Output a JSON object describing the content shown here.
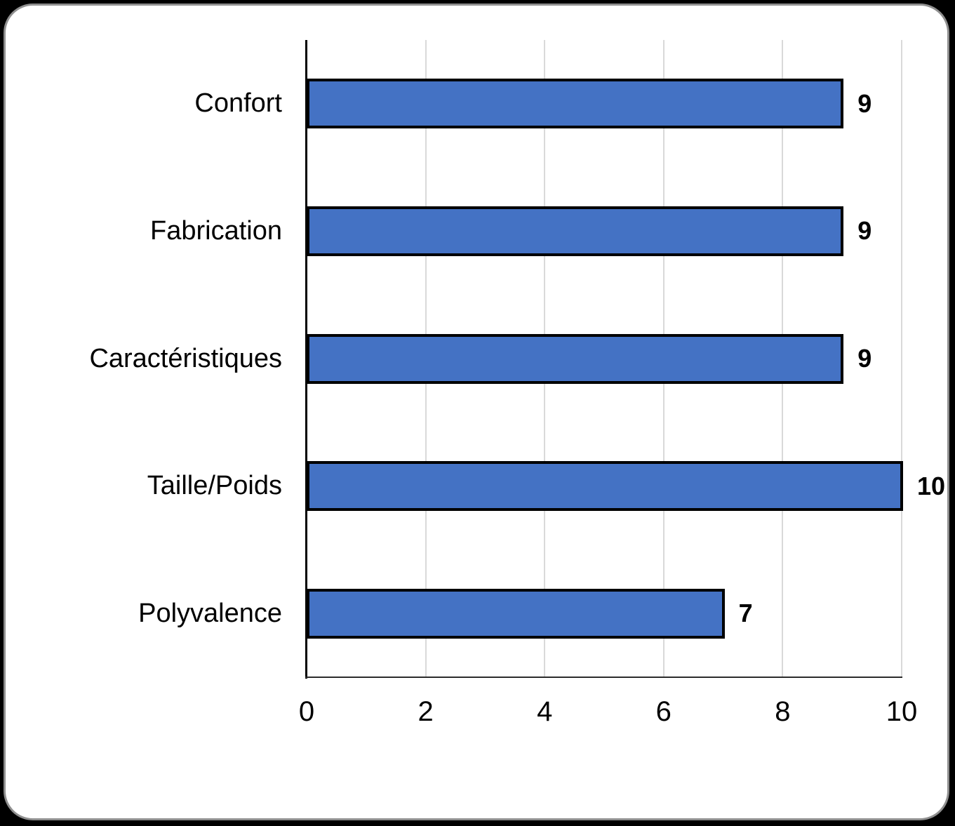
{
  "chart_data": {
    "type": "bar",
    "orientation": "horizontal",
    "title": "",
    "xlabel": "",
    "ylabel": "",
    "categories": [
      "Confort",
      "Fabrication",
      "Caractéristiques",
      "Taille/Poids",
      "Polyvalence"
    ],
    "values": [
      9,
      9,
      9,
      10,
      7
    ],
    "data_labels": [
      "9",
      "9",
      "9",
      "10",
      "7"
    ],
    "xlim": [
      0,
      10
    ],
    "x_tick_labels": [
      "0",
      "2",
      "4",
      "6",
      "8",
      "10"
    ],
    "x_tick_values": [
      0,
      2,
      4,
      6,
      8,
      10
    ],
    "grid": "vertical-only",
    "legend": "none",
    "colors": {
      "bar_fill": "#4472c4",
      "bar_border": "#000000",
      "gridline": "#d9d9d9",
      "axis": "#000000",
      "text": "#000000",
      "card_background": "#ffffff",
      "page_background": "#000000",
      "card_border": "#8f8f8f"
    }
  }
}
